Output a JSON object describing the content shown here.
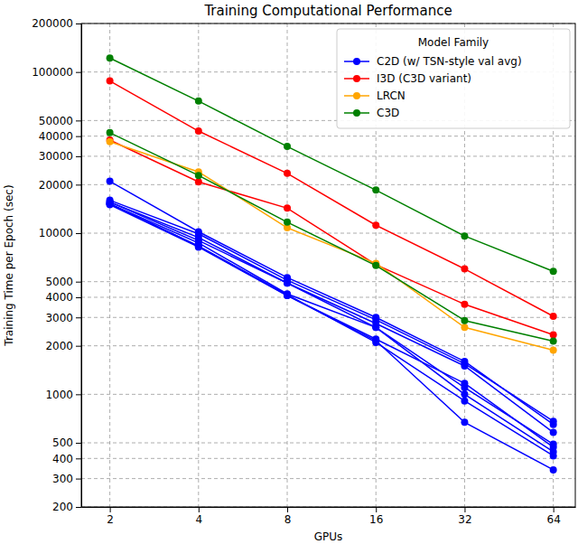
{
  "chart_data": {
    "type": "line",
    "title": "Training Computational Performance",
    "x_label": "GPUs",
    "y_label": "Training Time per Epoch (sec)",
    "legend_title": "Model Family",
    "legend": "upper right",
    "log": true,
    "grid": true,
    "marker": "circle",
    "x": [
      2,
      4,
      8,
      16,
      32,
      64
    ],
    "xlim": [
      1.6,
      76
    ],
    "xticks": [
      2,
      4,
      8,
      16,
      32,
      64
    ],
    "ylim": [
      200,
      200000
    ],
    "yticks": [
      200,
      300,
      400,
      500,
      1000,
      2000,
      3000,
      4000,
      5000,
      10000,
      20000,
      30000,
      40000,
      50000,
      100000,
      200000
    ],
    "series": [
      {
        "name": "C2D (w/ TSN-style val avg)",
        "color": "#0000ff",
        "values": [
          21000,
          10200,
          5300,
          3000,
          1600,
          650
        ]
      },
      {
        "color": "#0000ff",
        "values": [
          16000,
          9900,
          5100,
          2900,
          1550,
          680
        ]
      },
      {
        "color": "#0000ff",
        "values": [
          15600,
          9400,
          4900,
          2750,
          1500,
          580
        ]
      },
      {
        "color": "#0000ff",
        "values": [
          15200,
          8700,
          4200,
          2600,
          1100,
          490
        ]
      },
      {
        "color": "#0000ff",
        "values": [
          15200,
          8300,
          4100,
          2200,
          1170,
          470
        ]
      },
      {
        "color": "#0000ff",
        "values": [
          15600,
          9000,
          4900,
          2600,
          1000,
          440
        ]
      },
      {
        "color": "#0000ff",
        "values": [
          15200,
          8300,
          4150,
          2100,
          910,
          415
        ]
      },
      {
        "color": "#0000ff",
        "values": [
          15000,
          8200,
          4100,
          2150,
          670,
          340
        ]
      },
      {
        "name": "I3D (C3D variant)",
        "color": "#ff0000",
        "values": [
          88000,
          43000,
          23500,
          11200,
          6000,
          3050
        ]
      },
      {
        "color": "#ff0000",
        "values": [
          37800,
          20800,
          14300,
          6370,
          3620,
          2340
        ]
      },
      {
        "name": "LRCN",
        "color": "#ffa500",
        "values": [
          37000,
          24000,
          10800,
          6500,
          2600,
          1880
        ]
      },
      {
        "name": "C3D",
        "color": "#008000",
        "values": [
          122000,
          66000,
          34500,
          18500,
          9600,
          5800
        ]
      },
      {
        "color": "#008000",
        "values": [
          42000,
          22800,
          11700,
          6300,
          2870,
          2140
        ]
      }
    ]
  }
}
